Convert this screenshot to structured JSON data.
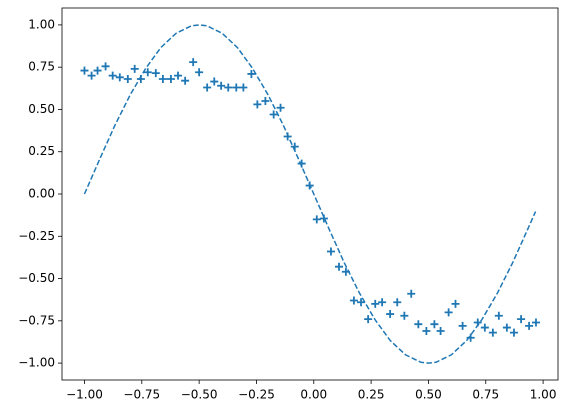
{
  "chart_data": {
    "type": "scatter",
    "xlim": [
      -1.098,
      1.065
    ],
    "ylim": [
      -1.1,
      1.1
    ],
    "xticks": [
      {
        "value": -1,
        "label": "−1.00"
      },
      {
        "value": -0.75,
        "label": "−0.75"
      },
      {
        "value": -0.5,
        "label": "−0.50"
      },
      {
        "value": -0.25,
        "label": "−0.25"
      },
      {
        "value": 0,
        "label": "0.00"
      },
      {
        "value": 0.25,
        "label": "0.25"
      },
      {
        "value": 0.5,
        "label": "0.50"
      },
      {
        "value": 0.75,
        "label": "0.75"
      },
      {
        "value": 1,
        "label": "1.00"
      }
    ],
    "yticks": [
      {
        "value": -1,
        "label": "−1.00"
      },
      {
        "value": -0.75,
        "label": "−0.75"
      },
      {
        "value": -0.5,
        "label": "−0.50"
      },
      {
        "value": -0.25,
        "label": "−0.25"
      },
      {
        "value": 0,
        "label": "0.00"
      },
      {
        "value": 0.25,
        "label": "0.25"
      },
      {
        "value": 0.5,
        "label": "0.50"
      },
      {
        "value": 0.75,
        "label": "0.75"
      },
      {
        "value": 1,
        "label": "1.00"
      }
    ],
    "grid": false,
    "series": [
      {
        "type": "line",
        "dashed": true,
        "color": "#1f77b4",
        "x": [
          -1,
          -0.933,
          -0.867,
          -0.8,
          -0.733,
          -0.667,
          -0.6,
          -0.533,
          -0.5,
          -0.467,
          -0.4,
          -0.333,
          -0.267,
          -0.2,
          -0.133,
          -0.067,
          0,
          0.067,
          0.133,
          0.2,
          0.267,
          0.333,
          0.4,
          0.467,
          0.5,
          0.533,
          0.6,
          0.667,
          0.733,
          0.8,
          0.867,
          0.933,
          0.967
        ],
        "values": [
          0,
          0.208,
          0.407,
          0.588,
          0.743,
          0.866,
          0.951,
          0.995,
          1,
          0.995,
          0.951,
          0.866,
          0.743,
          0.588,
          0.407,
          0.208,
          0,
          -0.208,
          -0.407,
          -0.588,
          -0.743,
          -0.866,
          -0.951,
          -0.995,
          -1,
          -0.995,
          -0.951,
          -0.866,
          -0.743,
          -0.588,
          -0.407,
          -0.208,
          -0.104
        ]
      },
      {
        "type": "scatter",
        "marker": "+",
        "color": "#1f77b4",
        "x": [
          -1.0,
          -0.969,
          -0.943,
          -0.908,
          -0.877,
          -0.846,
          -0.811,
          -0.781,
          -0.754,
          -0.724,
          -0.689,
          -0.658,
          -0.623,
          -0.592,
          -0.561,
          -0.526,
          -0.5,
          -0.465,
          -0.434,
          -0.404,
          -0.373,
          -0.338,
          -0.307,
          -0.272,
          -0.246,
          -0.211,
          -0.175,
          -0.145,
          -0.114,
          -0.083,
          -0.053,
          -0.018,
          0.013,
          0.044,
          0.075,
          0.11,
          0.14,
          0.175,
          0.206,
          0.237,
          0.268,
          0.298,
          0.333,
          0.364,
          0.395,
          0.425,
          0.456,
          0.491,
          0.526,
          0.553,
          0.588,
          0.618,
          0.649,
          0.684,
          0.715,
          0.746,
          0.781,
          0.807,
          0.842,
          0.873,
          0.904,
          0.939,
          0.969
        ],
        "values": [
          0.73,
          0.7,
          0.73,
          0.755,
          0.7,
          0.69,
          0.68,
          0.74,
          0.68,
          0.72,
          0.715,
          0.68,
          0.68,
          0.7,
          0.67,
          0.78,
          0.72,
          0.63,
          0.665,
          0.64,
          0.63,
          0.63,
          0.63,
          0.71,
          0.53,
          0.55,
          0.47,
          0.51,
          0.34,
          0.28,
          0.18,
          0.05,
          -0.15,
          -0.145,
          -0.34,
          -0.43,
          -0.46,
          -0.63,
          -0.64,
          -0.74,
          -0.65,
          -0.64,
          -0.71,
          -0.64,
          -0.72,
          -0.59,
          -0.77,
          -0.81,
          -0.77,
          -0.81,
          -0.7,
          -0.65,
          -0.78,
          -0.85,
          -0.76,
          -0.79,
          -0.82,
          -0.72,
          -0.79,
          -0.82,
          -0.74,
          -0.78,
          -0.76
        ]
      }
    ]
  }
}
